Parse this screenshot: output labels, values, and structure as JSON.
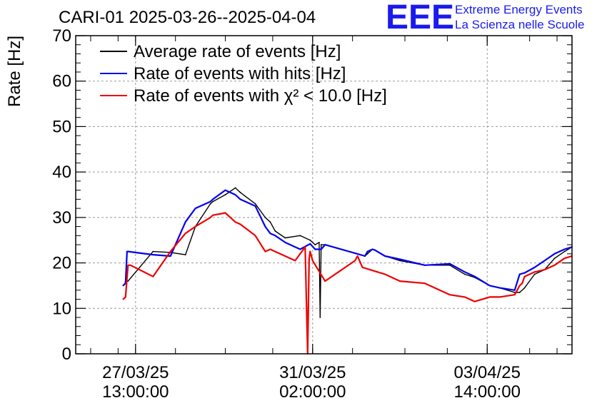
{
  "chart_data": {
    "type": "line",
    "title": "CARI-01 2025-03-26--2025-04-04",
    "ylabel": "Rate [Hz]",
    "xlabel": "",
    "ylim": [
      0,
      70
    ],
    "yticks": [
      0,
      10,
      20,
      30,
      40,
      50,
      60,
      70
    ],
    "xlim": [
      0,
      9.95
    ],
    "grid": true,
    "legend_position": "top-left",
    "x_tick_labels": [
      {
        "x": 1.2,
        "date": "27/03/25",
        "time": "13:00:00"
      },
      {
        "x": 4.75,
        "date": "31/03/25",
        "time": "02:00:00"
      },
      {
        "x": 8.25,
        "date": "03/04/25",
        "time": "14:00:00"
      }
    ],
    "x_minor_ticks": [
      0.3,
      0.85,
      1.2,
      2.0,
      3.0,
      3.95,
      4.75,
      5.55,
      6.6,
      7.45,
      8.25,
      9.1,
      9.65
    ],
    "series": [
      {
        "name": "Average rate of events [Hz]",
        "color": "#000000",
        "x": [
          0.95,
          0.99,
          1.0,
          1.05,
          1.55,
          1.9,
          2.2,
          2.4,
          2.7,
          2.75,
          3.0,
          3.2,
          3.3,
          3.6,
          3.8,
          3.9,
          4.0,
          4.2,
          4.5,
          4.5,
          4.7,
          4.8,
          4.88,
          4.9,
          4.92,
          5.0,
          5.8,
          5.85,
          5.95,
          6.0,
          6.2,
          6.5,
          7.0,
          7.5,
          7.8,
          8.0,
          8.3,
          8.5,
          8.8,
          8.82,
          8.9,
          9.0,
          9.2,
          9.4,
          9.6,
          9.8,
          9.95
        ],
        "y": [
          15,
          15.5,
          16,
          16,
          22.5,
          22.3,
          21.8,
          28,
          33,
          33.5,
          35,
          36.5,
          35.5,
          33,
          30,
          29,
          27,
          25.5,
          26,
          26,
          25,
          24,
          24.5,
          8,
          24,
          24,
          21.5,
          22,
          23,
          22.8,
          21.5,
          20.5,
          19.5,
          19.5,
          17.5,
          16.8,
          15,
          14.5,
          13.5,
          13.5,
          13.5,
          14.5,
          17.5,
          18.5,
          21,
          22.5,
          23.5
        ]
      },
      {
        "name": "Rate of events with hits [Hz]",
        "color": "#0000ee",
        "x": [
          0.95,
          1.0,
          1.03,
          1.05,
          1.55,
          1.9,
          2.2,
          2.4,
          2.7,
          2.75,
          3.0,
          3.2,
          3.3,
          3.6,
          3.8,
          3.9,
          4.0,
          4.2,
          4.5,
          4.7,
          4.8,
          4.92,
          5.0,
          5.8,
          5.85,
          5.95,
          6.0,
          6.2,
          6.5,
          7.0,
          7.5,
          7.8,
          8.0,
          8.3,
          8.5,
          8.8,
          8.9,
          9.0,
          9.2,
          9.4,
          9.6,
          9.8,
          9.95
        ],
        "y": [
          15,
          15.5,
          22.5,
          22.5,
          21.8,
          21.5,
          29,
          32,
          33.5,
          34,
          36,
          35,
          34,
          32.5,
          28,
          26.5,
          26,
          24.5,
          23,
          24.2,
          23,
          23,
          24,
          21.5,
          22.5,
          23,
          22.8,
          21.5,
          20.8,
          19.5,
          19.8,
          18,
          17,
          15,
          14.5,
          14,
          17.5,
          17.8,
          19,
          20.5,
          22,
          23,
          23.5
        ]
      },
      {
        "name": "Rate of events with χ² < 10.0 [Hz]",
        "color": "#ee0000",
        "x": [
          0.95,
          1.0,
          1.05,
          1.1,
          1.55,
          1.9,
          2.2,
          2.4,
          2.7,
          2.75,
          3.0,
          3.2,
          3.3,
          3.6,
          3.8,
          3.9,
          4.4,
          4.6,
          4.6,
          4.65,
          4.68,
          4.7,
          4.75,
          5.0,
          5.6,
          5.65,
          5.75,
          5.9,
          6.2,
          6.5,
          7.0,
          7.5,
          7.8,
          8.0,
          8.3,
          8.5,
          8.8,
          8.9,
          8.95,
          9.0,
          9.2,
          9.4,
          9.6,
          9.8,
          9.95
        ],
        "y": [
          12,
          12.5,
          19.5,
          19.5,
          17,
          22.5,
          26.5,
          28,
          30,
          30.5,
          31,
          29,
          28.5,
          26,
          22.5,
          23,
          20.5,
          23.5,
          23.5,
          0,
          21,
          22.5,
          20.5,
          16,
          20.5,
          21.5,
          19,
          18.5,
          17.5,
          16,
          15.5,
          13,
          12.5,
          11.5,
          12.5,
          12.5,
          13,
          15,
          15.5,
          17,
          18,
          18.5,
          19.5,
          21,
          21.5
        ]
      }
    ]
  },
  "branding": {
    "logo_text": "EEE",
    "line1": "Extreme Energy Events",
    "line2": "La Scienza nelle Scuole",
    "color": "#1a1aee"
  }
}
